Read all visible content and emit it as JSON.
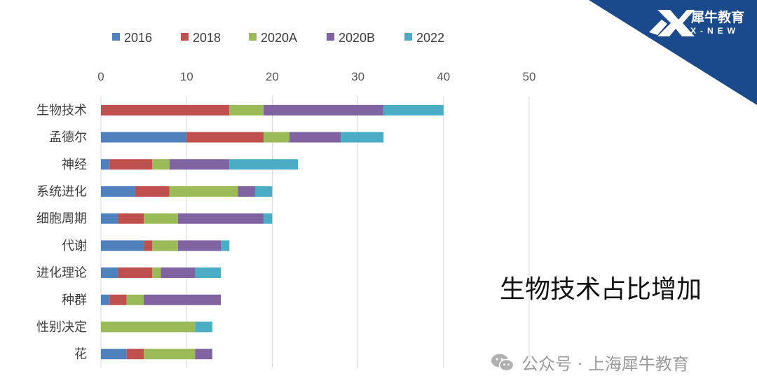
{
  "chart_data": {
    "type": "bar",
    "orientation": "horizontal",
    "stacked": true,
    "categories": [
      "生物技术",
      "孟德尔",
      "神经",
      "系统进化",
      "细胞周期",
      "代谢",
      "进化理论",
      "种群",
      "性别决定",
      "花"
    ],
    "series": [
      {
        "name": "2016",
        "color": "#4F81BD",
        "values": [
          0,
          10,
          1,
          4,
          2,
          5,
          2,
          1,
          0,
          3
        ]
      },
      {
        "name": "2018",
        "color": "#C0504D",
        "values": [
          15,
          9,
          5,
          4,
          3,
          1,
          4,
          2,
          0,
          2
        ]
      },
      {
        "name": "2020A",
        "color": "#9BBB59",
        "values": [
          4,
          3,
          2,
          8,
          4,
          3,
          1,
          2,
          11,
          6
        ]
      },
      {
        "name": "2020B",
        "color": "#8064A2",
        "values": [
          14,
          6,
          7,
          2,
          10,
          5,
          4,
          9,
          0,
          2
        ]
      },
      {
        "name": "2022",
        "color": "#4BACC6",
        "values": [
          7,
          5,
          8,
          2,
          1,
          1,
          3,
          0,
          2,
          0
        ]
      }
    ],
    "xlim": [
      0,
      50
    ],
    "xticks": [
      0,
      10,
      20,
      30,
      40,
      50
    ],
    "x_axis_position": "top",
    "grid": "vertical",
    "legend_position": "top"
  },
  "annotation": "生物技术占比增加",
  "watermark": {
    "text": "公众号 · 上海犀牛教育",
    "icon": "wechat-icon"
  },
  "brand": {
    "name_cn": "犀牛教育",
    "name_en": "X-NEW",
    "logo_color": "#1A4A8C"
  }
}
